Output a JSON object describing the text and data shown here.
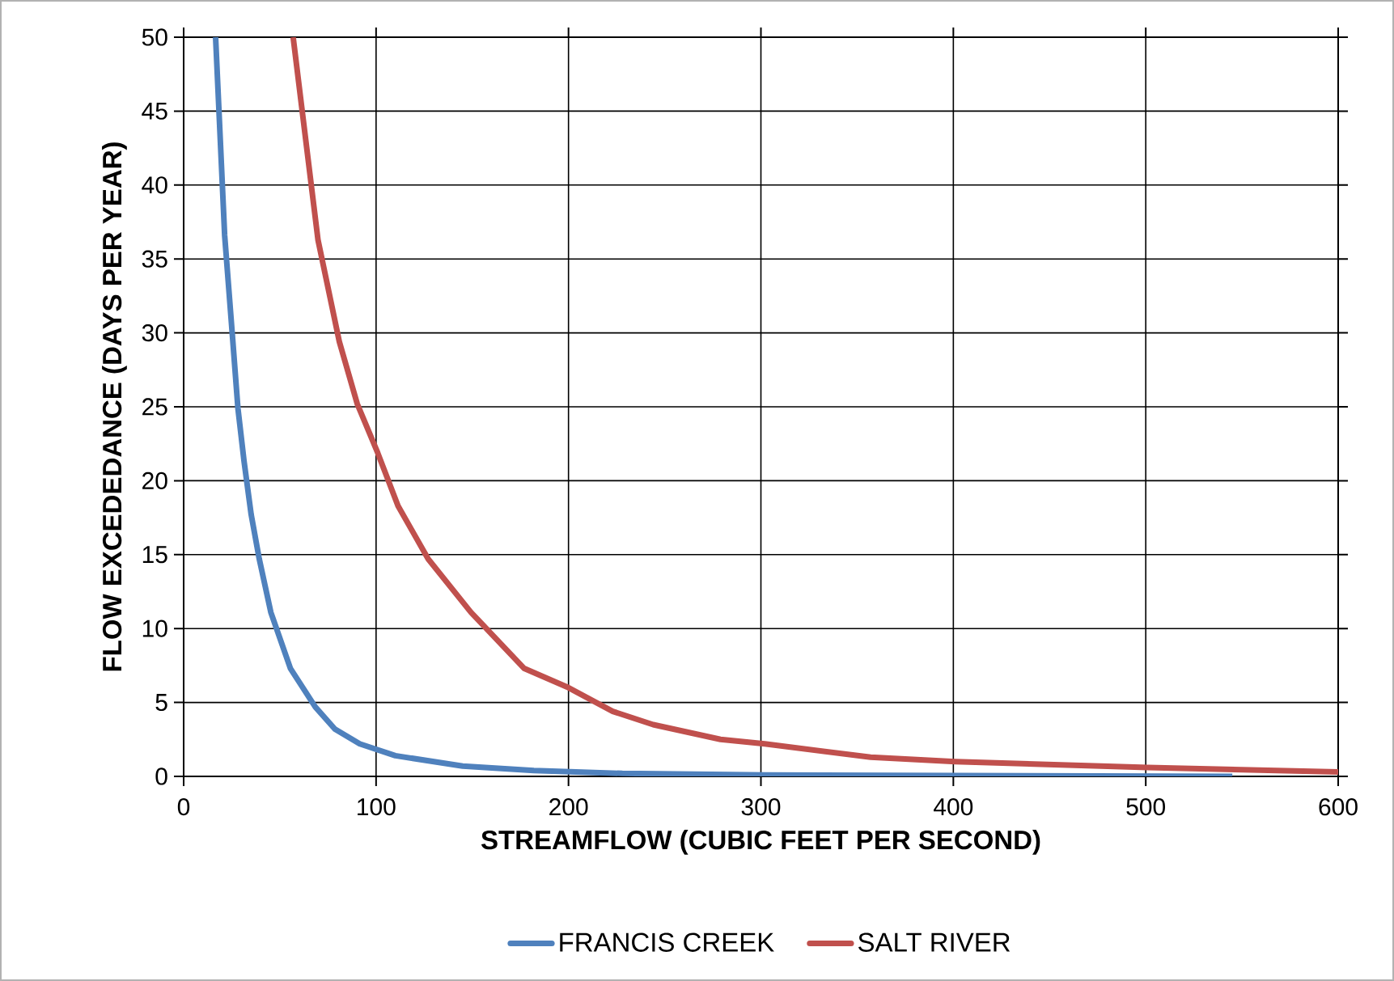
{
  "chart_data": {
    "type": "line",
    "xlabel": "STREAMFLOW (CUBIC FEET PER SECOND)",
    "ylabel": "FLOW EXCEDEDANCE (DAYS PER YEAR)",
    "xlim": [
      0,
      600
    ],
    "ylim": [
      0,
      50
    ],
    "xticks": [
      0,
      100,
      200,
      300,
      400,
      500,
      600
    ],
    "yticks": [
      0,
      5,
      10,
      15,
      20,
      25,
      30,
      35,
      40,
      45,
      50
    ],
    "grid": true,
    "legend": "bottom",
    "marker": "none",
    "line_style": "solid",
    "series": [
      {
        "name": "FRANCIS CREEK",
        "color": "#4f81bd",
        "x": [
          16.6,
          21.3,
          25.4,
          28.2,
          31.4,
          35.1,
          39.3,
          45.3,
          55.5,
          68.4,
          78.6,
          91.5,
          110,
          145,
          182,
          228,
          302,
          545
        ],
        "values": [
          50,
          36.6,
          29.7,
          24.9,
          21.3,
          17.7,
          14.7,
          11.1,
          7.3,
          4.7,
          3.2,
          2.2,
          1.4,
          0.7,
          0.4,
          0.2,
          0.1,
          0
        ]
      },
      {
        "name": "SALT RIVER",
        "color": "#c0504d",
        "x": [
          56.9,
          69.8,
          80.9,
          90.2,
          100.8,
          111.4,
          127.1,
          149.3,
          177,
          200,
          223,
          244,
          279,
          302,
          357,
          401,
          501,
          600
        ],
        "values": [
          50,
          36.3,
          29.4,
          25.2,
          21.9,
          18.3,
          14.7,
          11.1,
          7.3,
          6.0,
          4.4,
          3.5,
          2.5,
          2.2,
          1.3,
          1.0,
          0.6,
          0.3
        ]
      }
    ]
  }
}
